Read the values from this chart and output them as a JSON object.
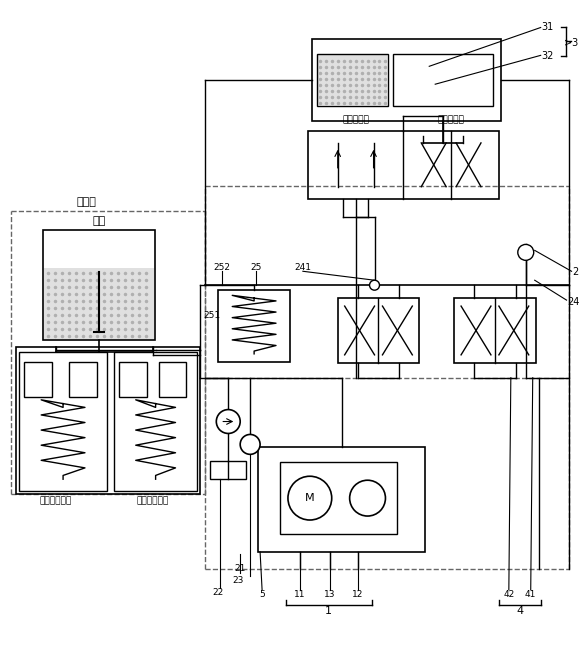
{
  "figsize": [
    5.83,
    6.5
  ],
  "dpi": 100,
  "bg": "#ffffff",
  "lc": "#000000",
  "dc": "#666666",
  "labels": {
    "zhidonggang": "制动缸",
    "youhu": "油壶",
    "jiehouqiao": "接后桥制动器",
    "jieqianqiao": "接前桥制动器",
    "fangxiangzuo": "方向盘左转",
    "fangxiangyou": "方向盘右转"
  }
}
